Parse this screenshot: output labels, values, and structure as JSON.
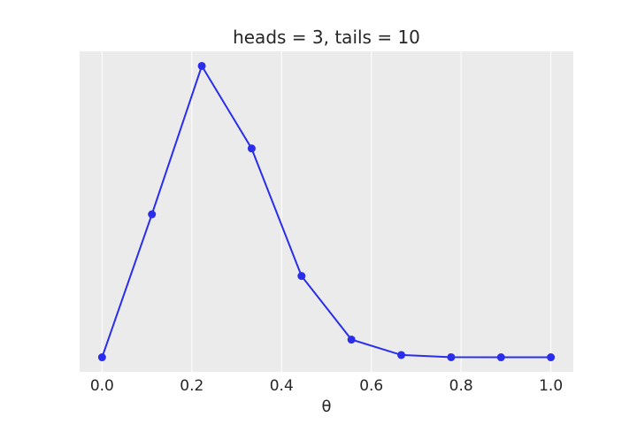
{
  "chart_data": {
    "type": "line",
    "title": "heads = 3, tails = 10",
    "xlabel": "θ",
    "ylabel": "",
    "x": [
      0.0,
      0.1111,
      0.2222,
      0.3333,
      0.4444,
      0.5556,
      0.6667,
      0.7778,
      0.8889,
      1.0
    ],
    "series": [
      {
        "values": [
          0.0,
          0.4908,
          1.0,
          0.7168,
          0.2792,
          0.0608,
          0.0079,
          0.0003,
          0.0,
          0.0
        ]
      }
    ],
    "xlim": [
      -0.05,
      1.05
    ],
    "ylim": [
      -0.05,
      1.05
    ],
    "xticks": [
      "0.0",
      "0.2",
      "0.4",
      "0.6",
      "0.8",
      "1.0"
    ],
    "yticks_visible": false,
    "grid": "vertical only",
    "background": "#ebebeb",
    "line_color": "#2a2eec",
    "marker": "circle"
  }
}
